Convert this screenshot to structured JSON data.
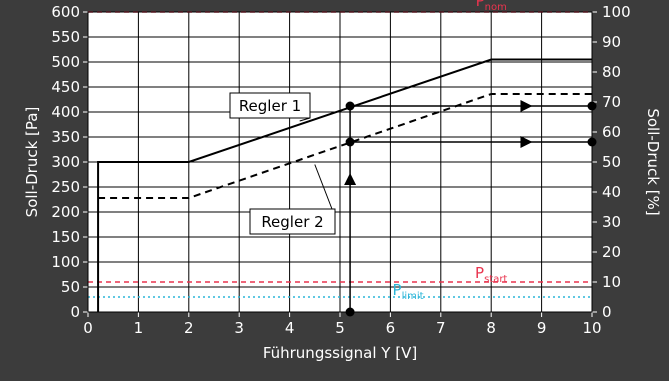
{
  "chart_data": {
    "type": "line",
    "xlabel": "Führungssignal Y [V]",
    "ylabel_left": "Soll-Druck [Pa]",
    "ylabel_right": "Soll-Druck [%]",
    "xlim": [
      0,
      10
    ],
    "ylim_left": [
      0,
      600
    ],
    "ylim_right": [
      0,
      100
    ],
    "x_ticks": [
      "0",
      "1",
      "2",
      "3",
      "4",
      "5",
      "6",
      "7",
      "8",
      "9",
      "10"
    ],
    "y_ticks_left": [
      "0",
      "50",
      "100",
      "150",
      "200",
      "250",
      "300",
      "350",
      "400",
      "450",
      "500",
      "550",
      "600"
    ],
    "y_ticks_right": [
      "0",
      "10",
      "20",
      "30",
      "40",
      "50",
      "60",
      "70",
      "80",
      "90",
      "100"
    ],
    "grid": true,
    "series": [
      {
        "name": "Regler 1",
        "style": "solid",
        "x": [
          0.2,
          0.2,
          2,
          8,
          10
        ],
        "y": [
          0,
          300,
          300,
          505,
          505
        ]
      },
      {
        "name": "Regler 2",
        "style": "dashed",
        "x": [
          0.2,
          2,
          8,
          10
        ],
        "y": [
          228,
          228,
          436,
          436
        ]
      }
    ],
    "reference_lines": [
      {
        "label_main": "P",
        "label_sub": "nom",
        "y": 600,
        "color": "#e8344e"
      },
      {
        "label_main": "P",
        "label_sub": "start",
        "y": 60,
        "color": "#e8344e"
      },
      {
        "label_main": "P",
        "label_sub": "limit",
        "y": 30,
        "color": "#2bb5d8"
      }
    ],
    "operating_point": {
      "x": 5.2,
      "points_y": [
        0,
        340,
        412
      ],
      "arrow_up_y": 270,
      "right_value_1": 412,
      "right_value_2": 340,
      "right_arrow_x": 8.7
    },
    "colors": {
      "background": "#3c3c3c",
      "plot_bg": "#ffffff",
      "series": "#000000",
      "text": "#ffffff"
    }
  }
}
